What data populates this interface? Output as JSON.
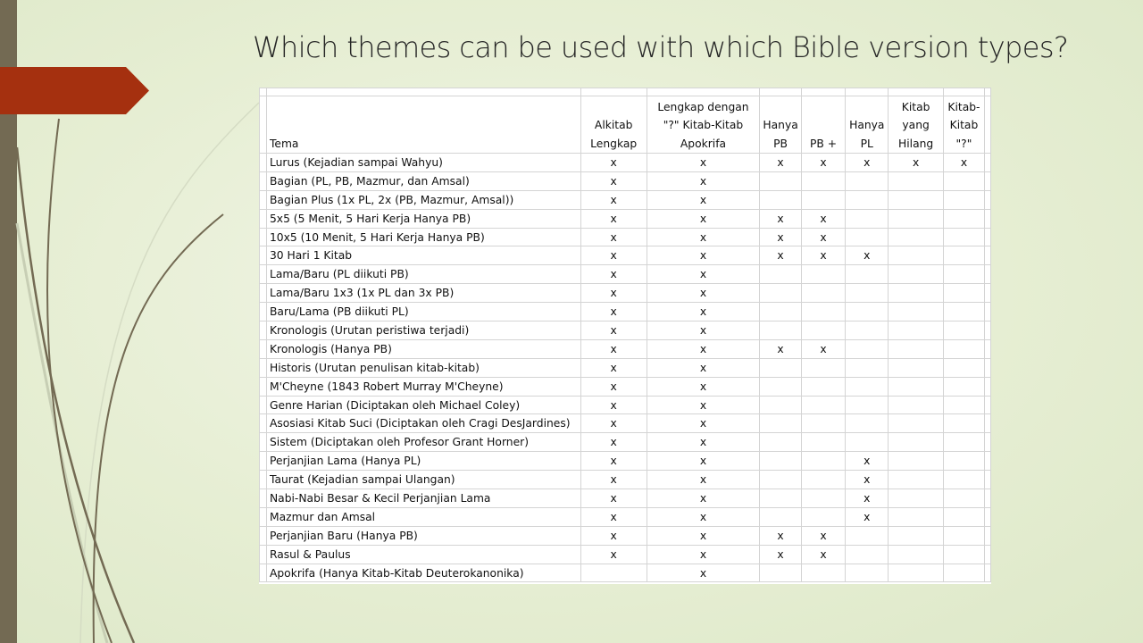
{
  "slide": {
    "title": "Which themes can be used with which Bible version types?",
    "accent_color": "#a5300f",
    "sidebar_color": "#736a53"
  },
  "table": {
    "headers": [
      "Tema",
      "Alkitab Lengkap",
      "Lengkap dengan \"?\" Kitab-Kitab Apokrifa",
      "Hanya PB",
      "PB +",
      "Hanya PL",
      "Kitab yang Hilang",
      "Kitab-Kitab \"?\""
    ],
    "rows": [
      [
        "Lurus (Kejadian sampai Wahyu)",
        "x",
        "x",
        "x",
        "x",
        "x",
        "x",
        "x"
      ],
      [
        "Bagian (PL, PB, Mazmur, dan Amsal)",
        "x",
        "x",
        "",
        "",
        "",
        "",
        ""
      ],
      [
        "Bagian Plus (1x PL, 2x (PB, Mazmur, Amsal))",
        "x",
        "x",
        "",
        "",
        "",
        "",
        ""
      ],
      [
        "5x5 (5 Menit, 5 Hari Kerja Hanya PB)",
        "x",
        "x",
        "x",
        "x",
        "",
        "",
        ""
      ],
      [
        "10x5 (10 Menit, 5 Hari Kerja Hanya PB)",
        "x",
        "x",
        "x",
        "x",
        "",
        "",
        ""
      ],
      [
        "30 Hari 1 Kitab",
        "x",
        "x",
        "x",
        "x",
        "x",
        "",
        ""
      ],
      [
        "Lama/Baru (PL diikuti PB)",
        "x",
        "x",
        "",
        "",
        "",
        "",
        ""
      ],
      [
        "Lama/Baru 1x3 (1x PL dan 3x PB)",
        "x",
        "x",
        "",
        "",
        "",
        "",
        ""
      ],
      [
        "Baru/Lama (PB diikuti PL)",
        "x",
        "x",
        "",
        "",
        "",
        "",
        ""
      ],
      [
        "Kronologis (Urutan peristiwa terjadi)",
        "x",
        "x",
        "",
        "",
        "",
        "",
        ""
      ],
      [
        "Kronologis (Hanya PB)",
        "x",
        "x",
        "x",
        "x",
        "",
        "",
        ""
      ],
      [
        "Historis (Urutan penulisan kitab-kitab)",
        "x",
        "x",
        "",
        "",
        "",
        "",
        ""
      ],
      [
        "M'Cheyne (1843 Robert Murray M'Cheyne)",
        "x",
        "x",
        "",
        "",
        "",
        "",
        ""
      ],
      [
        "Genre Harian (Diciptakan oleh Michael Coley)",
        "x",
        "x",
        "",
        "",
        "",
        "",
        ""
      ],
      [
        "Asosiasi Kitab Suci (Diciptakan oleh Cragi DesJardines)",
        "x",
        "x",
        "",
        "",
        "",
        "",
        ""
      ],
      [
        "Sistem (Diciptakan oleh Profesor Grant Horner)",
        "x",
        "x",
        "",
        "",
        "",
        "",
        ""
      ],
      [
        "Perjanjian Lama (Hanya PL)",
        "x",
        "x",
        "",
        "",
        "x",
        "",
        ""
      ],
      [
        "Taurat (Kejadian sampai Ulangan)",
        "x",
        "x",
        "",
        "",
        "x",
        "",
        ""
      ],
      [
        "Nabi-Nabi Besar & Kecil Perjanjian Lama",
        "x",
        "x",
        "",
        "",
        "x",
        "",
        ""
      ],
      [
        "Mazmur dan Amsal",
        "x",
        "x",
        "",
        "",
        "x",
        "",
        ""
      ],
      [
        "Perjanjian Baru (Hanya PB)",
        "x",
        "x",
        "x",
        "x",
        "",
        "",
        ""
      ],
      [
        "Rasul & Paulus",
        "x",
        "x",
        "x",
        "x",
        "",
        "",
        ""
      ],
      [
        "Apokrifa (Hanya Kitab-Kitab Deuterokanonika)",
        "",
        "x",
        "",
        "",
        "",
        "",
        ""
      ]
    ]
  }
}
